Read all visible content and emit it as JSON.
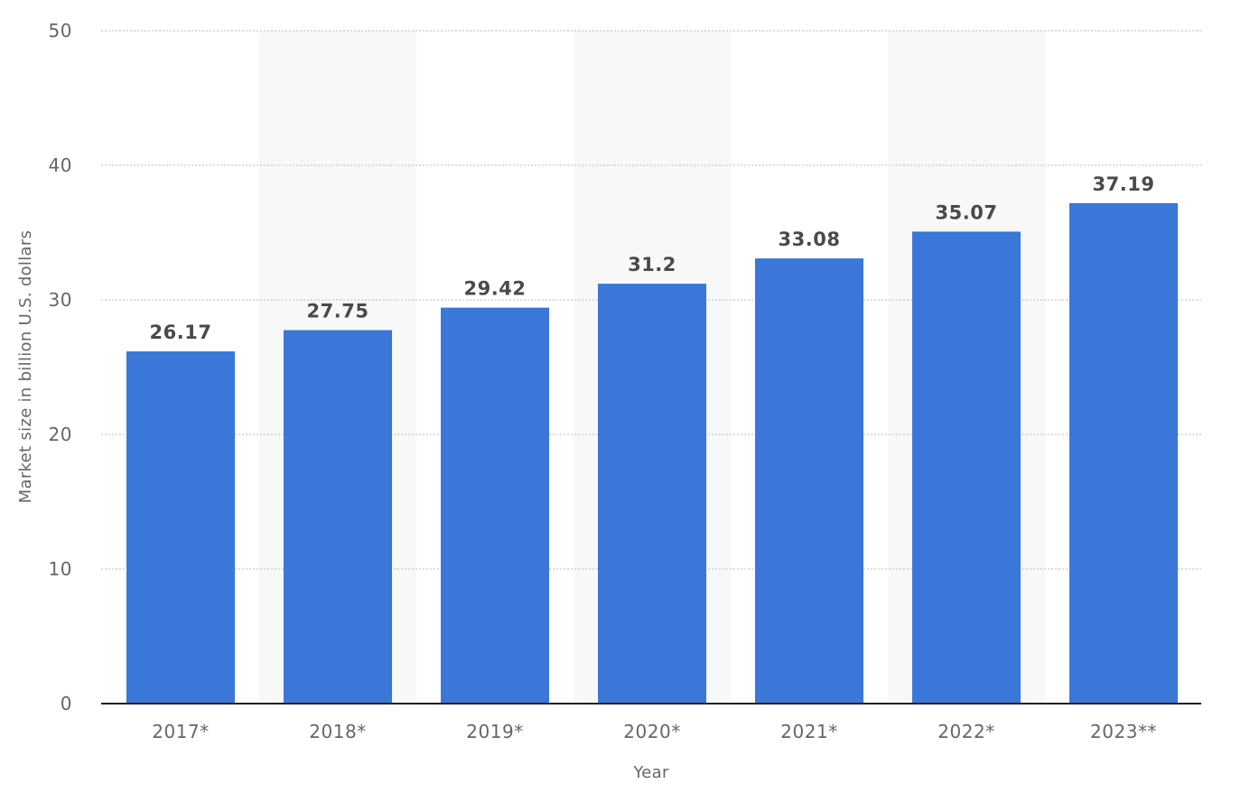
{
  "chart_data": {
    "type": "bar",
    "categories": [
      "2017*",
      "2018*",
      "2019*",
      "2020*",
      "2021*",
      "2022*",
      "2023**"
    ],
    "values": [
      26.17,
      27.75,
      29.42,
      31.2,
      33.08,
      35.07,
      37.19
    ],
    "value_labels": [
      "26.17",
      "27.75",
      "29.42",
      "31.2",
      "33.08",
      "35.07",
      "37.19"
    ],
    "title": "",
    "xlabel": "Year",
    "ylabel": "Market size in billion U.S. dollars",
    "ylim": [
      0,
      50
    ],
    "yticks": [
      "0",
      "10",
      "20",
      "30",
      "40",
      "50"
    ],
    "grid": true,
    "legend": "none",
    "colors": {
      "bar": "#3a77d9",
      "band": "#f8f8f8",
      "grid": "#c8c8c8",
      "axis": "#222222"
    }
  }
}
